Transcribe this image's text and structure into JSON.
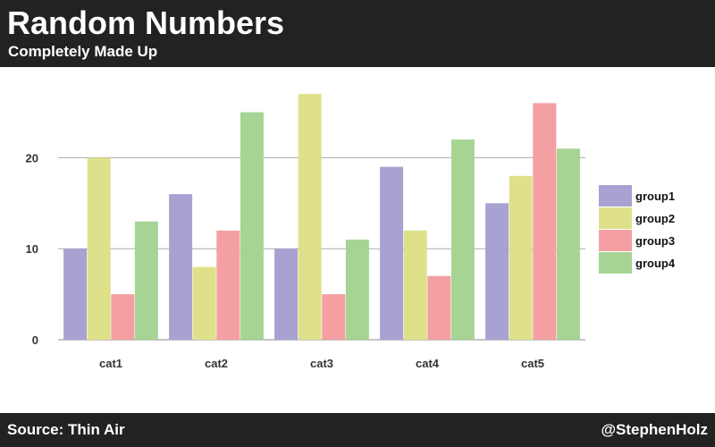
{
  "header": {
    "title": "Random Numbers",
    "subtitle": "Completely Made Up"
  },
  "footer": {
    "source": "Source: Thin Air",
    "credit": "@StephenHolz"
  },
  "chart_data": {
    "type": "bar",
    "title": "Random Numbers",
    "subtitle": "Completely Made Up",
    "xlabel": "",
    "ylabel": "",
    "categories": [
      "cat1",
      "cat2",
      "cat3",
      "cat4",
      "cat5"
    ],
    "series": [
      {
        "name": "group1",
        "color": "#a8a2d2",
        "values": [
          10,
          16,
          10,
          19,
          15
        ]
      },
      {
        "name": "group2",
        "color": "#dfe18a",
        "values": [
          20,
          8,
          27,
          12,
          18
        ]
      },
      {
        "name": "group3",
        "color": "#f4a0a2",
        "values": [
          5,
          12,
          5,
          7,
          26
        ]
      },
      {
        "name": "group4",
        "color": "#a6d494",
        "values": [
          13,
          25,
          11,
          22,
          21
        ]
      }
    ],
    "ylim": [
      0,
      28
    ],
    "yticks": [
      0,
      10,
      20
    ],
    "grid": true,
    "legend_position": "right"
  }
}
